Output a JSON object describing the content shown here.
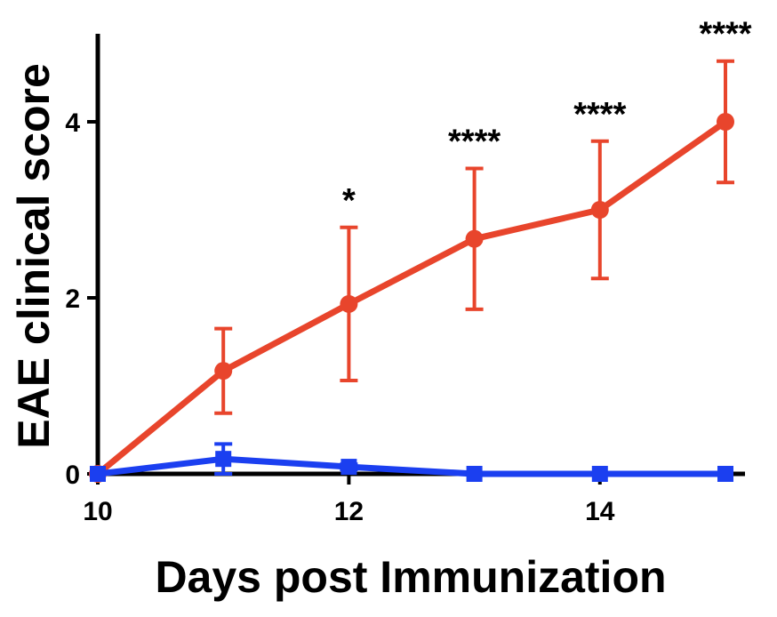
{
  "chart_data": {
    "type": "line",
    "title": "",
    "xlabel": "Days post Immunization",
    "ylabel": "EAE clinical score",
    "xlim": [
      10,
      15
    ],
    "ylim": [
      0,
      5
    ],
    "x_ticks": [
      10,
      12,
      14
    ],
    "y_ticks": [
      0,
      2,
      4
    ],
    "x_tick_labels": [
      "10",
      "12",
      "14"
    ],
    "y_tick_labels": [
      "0",
      "2",
      "4"
    ],
    "grid": false,
    "legend": "none",
    "series": [
      {
        "marker": "circle",
        "color": "#e8452c",
        "x": [
          10,
          11,
          12,
          13,
          14,
          15
        ],
        "y": [
          0,
          1.17,
          1.93,
          2.67,
          3.0,
          4.0
        ],
        "error": [
          0,
          0.48,
          0.87,
          0.8,
          0.78,
          0.69
        ]
      },
      {
        "marker": "square",
        "color": "#1b3ff0",
        "x": [
          10,
          11,
          12,
          13,
          14,
          15
        ],
        "y": [
          0,
          0.17,
          0.08,
          0,
          0,
          0
        ],
        "error": [
          0,
          0.17,
          0.03,
          0,
          0,
          0
        ]
      }
    ],
    "annotations": [
      {
        "x": 12,
        "text": "*"
      },
      {
        "x": 13,
        "text": "****"
      },
      {
        "x": 14,
        "text": "****"
      },
      {
        "x": 15,
        "text": "****"
      }
    ]
  }
}
